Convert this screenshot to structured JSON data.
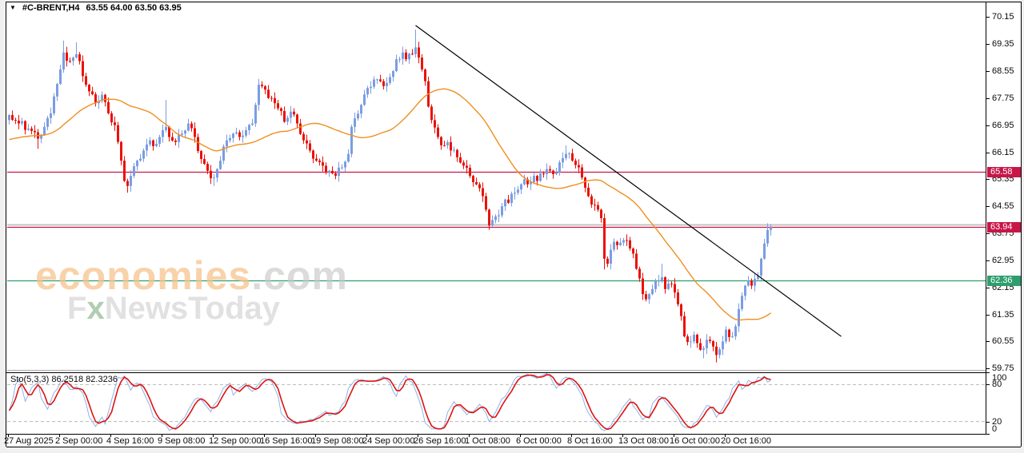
{
  "window": {
    "symbol": "#C-BRENT,H4",
    "ohlc": "63.55 64.00 63.50 63.95",
    "dropdown_arrow": "▼"
  },
  "colors": {
    "bull": "#7b9de2",
    "bear": "#ea130a",
    "ma": "#ef8f1f",
    "line_red": "#c81648",
    "line_teal": "#2e9e6e",
    "line_silver": "#c4c4c4",
    "trend": "#000000",
    "sto_k": "#8fb2e8",
    "sto_d": "#dc1414",
    "grid_dash": "#b8b8b8",
    "frame": "#000000"
  },
  "y_axis": {
    "ticks": [
      70.15,
      69.35,
      68.55,
      67.75,
      66.95,
      66.15,
      65.35,
      64.55,
      63.75,
      62.95,
      62.15,
      61.35,
      60.55,
      59.75
    ],
    "badges": [
      {
        "text": "65.58",
        "price": 65.58,
        "color": "#c81648"
      },
      {
        "text": "63.94",
        "price": 63.94,
        "color": "#c81648"
      },
      {
        "text": "62.36",
        "price": 62.36,
        "color": "#2e9e6e"
      }
    ]
  },
  "x_axis": {
    "labels": [
      "27 Aug 2025",
      "2 Sep 00:00",
      "4 Sep 16:00",
      "9 Sep 08:00",
      "12 Sep 00:00",
      "16 Sep 16:00",
      "19 Sep 08:00",
      "24 Sep 00:00",
      "26 Sep 16:00",
      "1 Oct 08:00",
      "6 Oct 00:00",
      "8 Oct 16:00",
      "13 Oct 08:00",
      "16 Oct 00:00",
      "20 Oct 16:00"
    ]
  },
  "watermark": {
    "brand": "economies",
    "brand_suffix": ".com",
    "sub_f": "F",
    "sub_x": "x",
    "sub_rest": "NewsToday"
  },
  "sto_pane": {
    "label": "Sto(5,3,3) 86.2518 82.3236",
    "scale_labels": [
      100,
      80,
      20,
      0
    ],
    "dash_levels": [
      80,
      20
    ]
  },
  "chart_data": {
    "type": "candlestick",
    "symbol": "#C-BRENT",
    "timeframe": "H4",
    "last_quote": {
      "open": 63.55,
      "high": 64.0,
      "low": 63.5,
      "close": 63.95
    },
    "price_range_shown": [
      59.75,
      70.15
    ],
    "horizontal_lines": [
      {
        "price": 65.58,
        "style": "solid",
        "color": "#c81648"
      },
      {
        "price": 64.0,
        "style": "solid",
        "color": "#c4c4c4"
      },
      {
        "price": 63.94,
        "style": "solid",
        "color": "#c81648"
      },
      {
        "price": 62.36,
        "style": "solid",
        "color": "#2e9e6e"
      }
    ],
    "trendline": {
      "from_idx": 127,
      "from_price": 69.9,
      "to_idx": 260,
      "to_price": 60.7
    },
    "moving_average": {
      "type": "SMA",
      "period": 30,
      "backfill": 66.5
    },
    "candles_total": 239,
    "close_anchors": [
      [
        0,
        67.25
      ],
      [
        3,
        67.0
      ],
      [
        6,
        66.85
      ],
      [
        9,
        66.55
      ],
      [
        11,
        66.9
      ],
      [
        13,
        67.3
      ],
      [
        14,
        67.8
      ],
      [
        16,
        68.6
      ],
      [
        17,
        69.1
      ],
      [
        19,
        68.85
      ],
      [
        21,
        69.05
      ],
      [
        23,
        68.4
      ],
      [
        25,
        67.95
      ],
      [
        27,
        67.6
      ],
      [
        29,
        67.85
      ],
      [
        31,
        67.3
      ],
      [
        33,
        66.95
      ],
      [
        35,
        65.9
      ],
      [
        36,
        65.3
      ],
      [
        37,
        65.15
      ],
      [
        38,
        65.45
      ],
      [
        40,
        65.9
      ],
      [
        42,
        66.2
      ],
      [
        44,
        66.5
      ],
      [
        46,
        66.4
      ],
      [
        48,
        66.8
      ],
      [
        49,
        66.9
      ],
      [
        50,
        66.6
      ],
      [
        52,
        66.45
      ],
      [
        54,
        66.7
      ],
      [
        56,
        67.0
      ],
      [
        58,
        66.6
      ],
      [
        60,
        65.95
      ],
      [
        62,
        65.6
      ],
      [
        64,
        65.4
      ],
      [
        66,
        65.9
      ],
      [
        68,
        66.5
      ],
      [
        70,
        66.7
      ],
      [
        72,
        66.6
      ],
      [
        74,
        66.8
      ],
      [
        76,
        67.0
      ],
      [
        77,
        67.55
      ],
      [
        78,
        68.15
      ],
      [
        80,
        68.0
      ],
      [
        82,
        67.75
      ],
      [
        84,
        67.45
      ],
      [
        86,
        67.05
      ],
      [
        88,
        67.35
      ],
      [
        90,
        67.0
      ],
      [
        92,
        66.5
      ],
      [
        94,
        66.2
      ],
      [
        96,
        65.9
      ],
      [
        98,
        65.75
      ],
      [
        100,
        65.6
      ],
      [
        102,
        65.45
      ],
      [
        104,
        65.7
      ],
      [
        106,
        66.1
      ],
      [
        107,
        66.9
      ],
      [
        108,
        67.15
      ],
      [
        110,
        67.55
      ],
      [
        112,
        68.05
      ],
      [
        114,
        68.3
      ],
      [
        116,
        68.25
      ],
      [
        118,
        68.2
      ],
      [
        120,
        68.55
      ],
      [
        121,
        68.9
      ],
      [
        123,
        69.1
      ],
      [
        124,
        68.9
      ],
      [
        126,
        69.05
      ],
      [
        127,
        69.25
      ],
      [
        128,
        68.95
      ],
      [
        129,
        68.6
      ],
      [
        130,
        68.25
      ],
      [
        131,
        67.5
      ],
      [
        132,
        67.1
      ],
      [
        134,
        66.6
      ],
      [
        136,
        66.35
      ],
      [
        137,
        66.45
      ],
      [
        138,
        66.2
      ],
      [
        140,
        66.0
      ],
      [
        142,
        65.75
      ],
      [
        144,
        65.45
      ],
      [
        146,
        65.2
      ],
      [
        148,
        64.85
      ],
      [
        149,
        64.45
      ],
      [
        150,
        63.98
      ],
      [
        152,
        64.25
      ],
      [
        154,
        64.55
      ],
      [
        155,
        64.75
      ],
      [
        156,
        64.65
      ],
      [
        158,
        64.95
      ],
      [
        160,
        65.2
      ],
      [
        161,
        65.35
      ],
      [
        162,
        65.2
      ],
      [
        164,
        65.45
      ],
      [
        165,
        65.3
      ],
      [
        167,
        65.5
      ],
      [
        168,
        65.65
      ],
      [
        170,
        65.5
      ],
      [
        172,
        65.85
      ],
      [
        174,
        66.1
      ],
      [
        176,
        65.9
      ],
      [
        178,
        65.7
      ],
      [
        179,
        65.4
      ],
      [
        180,
        65.1
      ],
      [
        181,
        64.85
      ],
      [
        182,
        64.6
      ],
      [
        184,
        64.45
      ],
      [
        185,
        64.2
      ],
      [
        186,
        63.0
      ],
      [
        187,
        62.85
      ],
      [
        189,
        63.5
      ],
      [
        190,
        63.4
      ],
      [
        192,
        63.55
      ],
      [
        194,
        63.3
      ],
      [
        195,
        63.15
      ],
      [
        196,
        62.7
      ],
      [
        198,
        61.95
      ],
      [
        199,
        61.8
      ],
      [
        201,
        62.1
      ],
      [
        203,
        62.35
      ],
      [
        204,
        62.45
      ],
      [
        205,
        62.1
      ],
      [
        207,
        62.25
      ],
      [
        208,
        62.0
      ],
      [
        210,
        61.3
      ],
      [
        211,
        60.7
      ],
      [
        213,
        60.55
      ],
      [
        214,
        60.75
      ],
      [
        215,
        60.5
      ],
      [
        217,
        60.35
      ],
      [
        218,
        60.6
      ],
      [
        220,
        60.4
      ],
      [
        221,
        60.15
      ],
      [
        223,
        60.55
      ],
      [
        224,
        60.9
      ],
      [
        226,
        60.7
      ],
      [
        227,
        61.0
      ],
      [
        229,
        61.9
      ],
      [
        230,
        62.2
      ],
      [
        231,
        62.35
      ],
      [
        232,
        62.2
      ],
      [
        233,
        62.4
      ],
      [
        234,
        62.5
      ],
      [
        235,
        63.0
      ],
      [
        236,
        63.45
      ],
      [
        237,
        63.85
      ],
      [
        238,
        63.95
      ]
    ],
    "wick_overrides": {
      "9": {
        "l": 66.25
      },
      "17": {
        "h": 69.45
      },
      "21": {
        "h": 69.4
      },
      "37": {
        "l": 64.95
      },
      "49": {
        "h": 67.7
      },
      "64": {
        "l": 65.15
      },
      "103": {
        "l": 65.28
      },
      "127": {
        "h": 69.78
      },
      "150": {
        "l": 63.85
      },
      "174": {
        "h": 66.35
      },
      "186": {
        "l": 62.68
      },
      "204": {
        "h": 62.85
      },
      "217": {
        "l": 60.05
      },
      "221": {
        "l": 59.93
      },
      "237": {
        "h": 64.05
      },
      "238": {
        "h": 64.02
      }
    },
    "stochastic": {
      "name": "Sto(5,3,3)",
      "current_k": 86.2518,
      "current_d": 82.3236,
      "k_anchors": [
        [
          0,
          40
        ],
        [
          1,
          55
        ],
        [
          2,
          80
        ],
        [
          3,
          88
        ],
        [
          5,
          55
        ],
        [
          7,
          75
        ],
        [
          9,
          82
        ],
        [
          10,
          60
        ],
        [
          12,
          40
        ],
        [
          14,
          65
        ],
        [
          16,
          85
        ],
        [
          17,
          88
        ],
        [
          19,
          70
        ],
        [
          21,
          78
        ],
        [
          23,
          65
        ],
        [
          25,
          30
        ],
        [
          27,
          12
        ],
        [
          29,
          25
        ],
        [
          30,
          18
        ],
        [
          32,
          55
        ],
        [
          34,
          90
        ],
        [
          36,
          95
        ],
        [
          38,
          70
        ],
        [
          40,
          85
        ],
        [
          41,
          80
        ],
        [
          43,
          55
        ],
        [
          45,
          30
        ],
        [
          47,
          20
        ],
        [
          49,
          12
        ],
        [
          50,
          8
        ],
        [
          52,
          10
        ],
        [
          54,
          20
        ],
        [
          56,
          40
        ],
        [
          58,
          55
        ],
        [
          60,
          58
        ],
        [
          61,
          50
        ],
        [
          63,
          35
        ],
        [
          65,
          55
        ],
        [
          67,
          75
        ],
        [
          69,
          80
        ],
        [
          70,
          65
        ],
        [
          72,
          75
        ],
        [
          74,
          80
        ],
        [
          76,
          70
        ],
        [
          78,
          80
        ],
        [
          80,
          92
        ],
        [
          82,
          85
        ],
        [
          84,
          60
        ],
        [
          85,
          35
        ],
        [
          87,
          22
        ],
        [
          89,
          15
        ],
        [
          91,
          22
        ],
        [
          93,
          18
        ],
        [
          95,
          25
        ],
        [
          97,
          30
        ],
        [
          99,
          35
        ],
        [
          100,
          32
        ],
        [
          103,
          35
        ],
        [
          105,
          55
        ],
        [
          106,
          75
        ],
        [
          108,
          86
        ],
        [
          110,
          87
        ],
        [
          112,
          86
        ],
        [
          114,
          83
        ],
        [
          115,
          90
        ],
        [
          117,
          93
        ],
        [
          119,
          80
        ],
        [
          121,
          62
        ],
        [
          122,
          80
        ],
        [
          124,
          92
        ],
        [
          126,
          85
        ],
        [
          128,
          55
        ],
        [
          130,
          20
        ],
        [
          132,
          8
        ],
        [
          134,
          6
        ],
        [
          136,
          15
        ],
        [
          137,
          35
        ],
        [
          139,
          50
        ],
        [
          141,
          45
        ],
        [
          143,
          30
        ],
        [
          145,
          38
        ],
        [
          147,
          48
        ],
        [
          148,
          40
        ],
        [
          150,
          22
        ],
        [
          152,
          35
        ],
        [
          154,
          55
        ],
        [
          156,
          70
        ],
        [
          158,
          88
        ],
        [
          160,
          95
        ],
        [
          162,
          97
        ],
        [
          164,
          90
        ],
        [
          166,
          95
        ],
        [
          168,
          97
        ],
        [
          170,
          85
        ],
        [
          171,
          75
        ],
        [
          173,
          88
        ],
        [
          175,
          92
        ],
        [
          177,
          80
        ],
        [
          179,
          60
        ],
        [
          181,
          35
        ],
        [
          183,
          18
        ],
        [
          185,
          10
        ],
        [
          186,
          6
        ],
        [
          188,
          12
        ],
        [
          190,
          30
        ],
        [
          192,
          45
        ],
        [
          194,
          55
        ],
        [
          196,
          40
        ],
        [
          198,
          22
        ],
        [
          200,
          30
        ],
        [
          201,
          50
        ],
        [
          203,
          60
        ],
        [
          205,
          55
        ],
        [
          207,
          40
        ],
        [
          209,
          25
        ],
        [
          211,
          12
        ],
        [
          213,
          8
        ],
        [
          214,
          15
        ],
        [
          216,
          30
        ],
        [
          218,
          45
        ],
        [
          220,
          40
        ],
        [
          221,
          28
        ],
        [
          223,
          40
        ],
        [
          225,
          60
        ],
        [
          226,
          75
        ],
        [
          228,
          85
        ],
        [
          229,
          70
        ],
        [
          231,
          88
        ],
        [
          233,
          80
        ],
        [
          234,
          90
        ],
        [
          236,
          95
        ],
        [
          237,
          84
        ],
        [
          238,
          86
        ]
      ]
    }
  }
}
